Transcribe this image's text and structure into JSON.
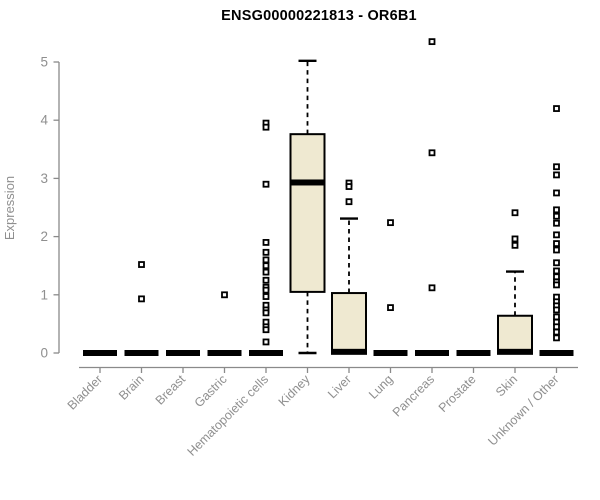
{
  "chart_data": {
    "type": "boxplot",
    "title": "ENSG00000221813 - OR6B1",
    "ylabel": "Expression",
    "xlabel": "",
    "ylim": [
      0,
      5
    ],
    "yticks": [
      0,
      1,
      2,
      3,
      4,
      5
    ],
    "grid": false,
    "legend": false,
    "categories": [
      "Bladder",
      "Brain",
      "Breast",
      "Gastric",
      "Hematopoietic cells",
      "Kidney",
      "Liver",
      "Lung",
      "Pancreas",
      "Prostate",
      "Skin",
      "Unknown / Other"
    ],
    "boxes": [
      {
        "category": "Bladder",
        "q1": 0,
        "median": 0,
        "q3": 0,
        "whisker_low": 0,
        "whisker_high": 0,
        "outliers": []
      },
      {
        "category": "Brain",
        "q1": 0,
        "median": 0,
        "q3": 0,
        "whisker_low": 0,
        "whisker_high": 0,
        "outliers": [
          1.52,
          0.93
        ]
      },
      {
        "category": "Breast",
        "q1": 0,
        "median": 0,
        "q3": 0,
        "whisker_low": 0,
        "whisker_high": 0,
        "outliers": []
      },
      {
        "category": "Gastric",
        "q1": 0,
        "median": 0,
        "q3": 0,
        "whisker_low": 0,
        "whisker_high": 0,
        "outliers": [
          1.0
        ]
      },
      {
        "category": "Hematopoietic cells",
        "q1": 0,
        "median": 0,
        "q3": 0,
        "whisker_low": 0,
        "whisker_high": 0,
        "outliers": [
          3.95,
          3.88,
          2.9,
          1.9,
          1.73,
          1.6,
          1.5,
          1.39,
          1.25,
          1.13,
          1.08,
          0.97,
          0.82,
          0.74,
          0.69,
          0.53,
          0.45,
          0.4,
          0.19
        ]
      },
      {
        "category": "Kidney",
        "q1": 1.05,
        "median": 2.93,
        "q3": 3.76,
        "whisker_low": 0,
        "whisker_high": 5.02,
        "outliers": []
      },
      {
        "category": "Liver",
        "q1": 0,
        "median": 0.02,
        "q3": 1.03,
        "whisker_low": 0,
        "whisker_high": 2.31,
        "outliers": [
          2.92,
          2.86,
          2.6
        ]
      },
      {
        "category": "Lung",
        "q1": 0,
        "median": 0,
        "q3": 0,
        "whisker_low": 0,
        "whisker_high": 0,
        "outliers": [
          2.24,
          0.78
        ]
      },
      {
        "category": "Pancreas",
        "q1": 0,
        "median": 0,
        "q3": 0,
        "whisker_low": 0,
        "whisker_high": 0,
        "outliers": [
          5.35,
          3.44,
          1.12
        ]
      },
      {
        "category": "Prostate",
        "q1": 0,
        "median": 0,
        "q3": 0,
        "whisker_low": 0,
        "whisker_high": 0,
        "outliers": []
      },
      {
        "category": "Skin",
        "q1": 0,
        "median": 0.02,
        "q3": 0.64,
        "whisker_low": 0,
        "whisker_high": 1.4,
        "outliers": [
          2.41,
          1.96,
          1.85
        ]
      },
      {
        "category": "Unknown / Other",
        "q1": 0,
        "median": 0,
        "q3": 0,
        "whisker_low": 0,
        "whisker_high": 0,
        "outliers": [
          4.2,
          3.2,
          3.06,
          2.75,
          2.46,
          2.35,
          2.23,
          2.03,
          1.88,
          1.77,
          1.55,
          1.41,
          1.31,
          1.22,
          1.17,
          0.96,
          0.88,
          0.81,
          0.74,
          0.62,
          0.53,
          0.45,
          0.36,
          0.26
        ]
      }
    ],
    "colors": {
      "box_fill": "#EFE9D1",
      "box_stroke": "#000000",
      "median": "#000000",
      "whisker": "#000000",
      "outlier_stroke": "#000000",
      "outlier_fill": "#ffffff",
      "axis": "#8a8a8a",
      "tick_label": "#8f8f8f",
      "title": "#000000",
      "background": "#ffffff"
    }
  }
}
